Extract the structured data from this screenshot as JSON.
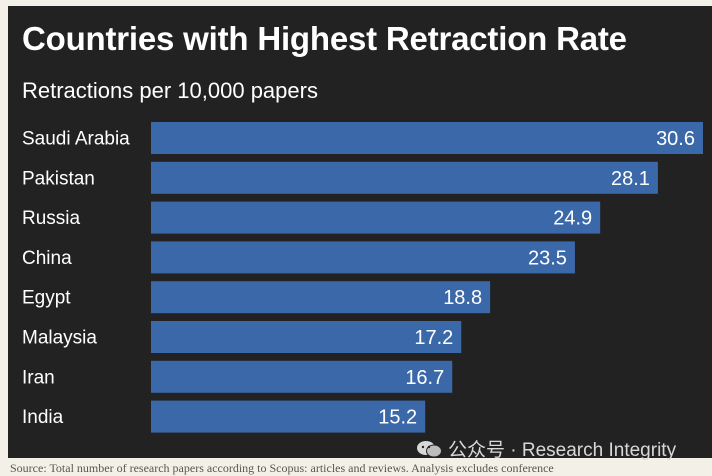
{
  "title": "Countries with Highest Retraction Rate",
  "subtitle": "Retractions per 10,000 papers",
  "watermark": "公众号 · Research Integrity",
  "source": "Source: Total number of research papers according to Scopus: articles and reviews. Analysis excludes conference",
  "colors": {
    "bar": "#3b68a9",
    "panel": "#222222",
    "text": "#ffffff",
    "page": "#f3f1e7"
  },
  "chart_data": {
    "type": "bar",
    "orientation": "horizontal",
    "title": "Countries with Highest Retraction Rate",
    "subtitle": "Retractions per 10,000 papers",
    "categories": [
      "Saudi Arabia",
      "Pakistan",
      "Russia",
      "China",
      "Egypt",
      "Malaysia",
      "Iran",
      "India"
    ],
    "values": [
      30.6,
      28.1,
      24.9,
      23.5,
      18.8,
      17.2,
      16.7,
      15.2
    ],
    "value_labels": [
      "30.6",
      "28.1",
      "24.9",
      "23.5",
      "18.8",
      "17.2",
      "16.7",
      "15.2"
    ],
    "xlim": [
      0,
      30.6
    ],
    "grid": false,
    "legend": "none"
  }
}
